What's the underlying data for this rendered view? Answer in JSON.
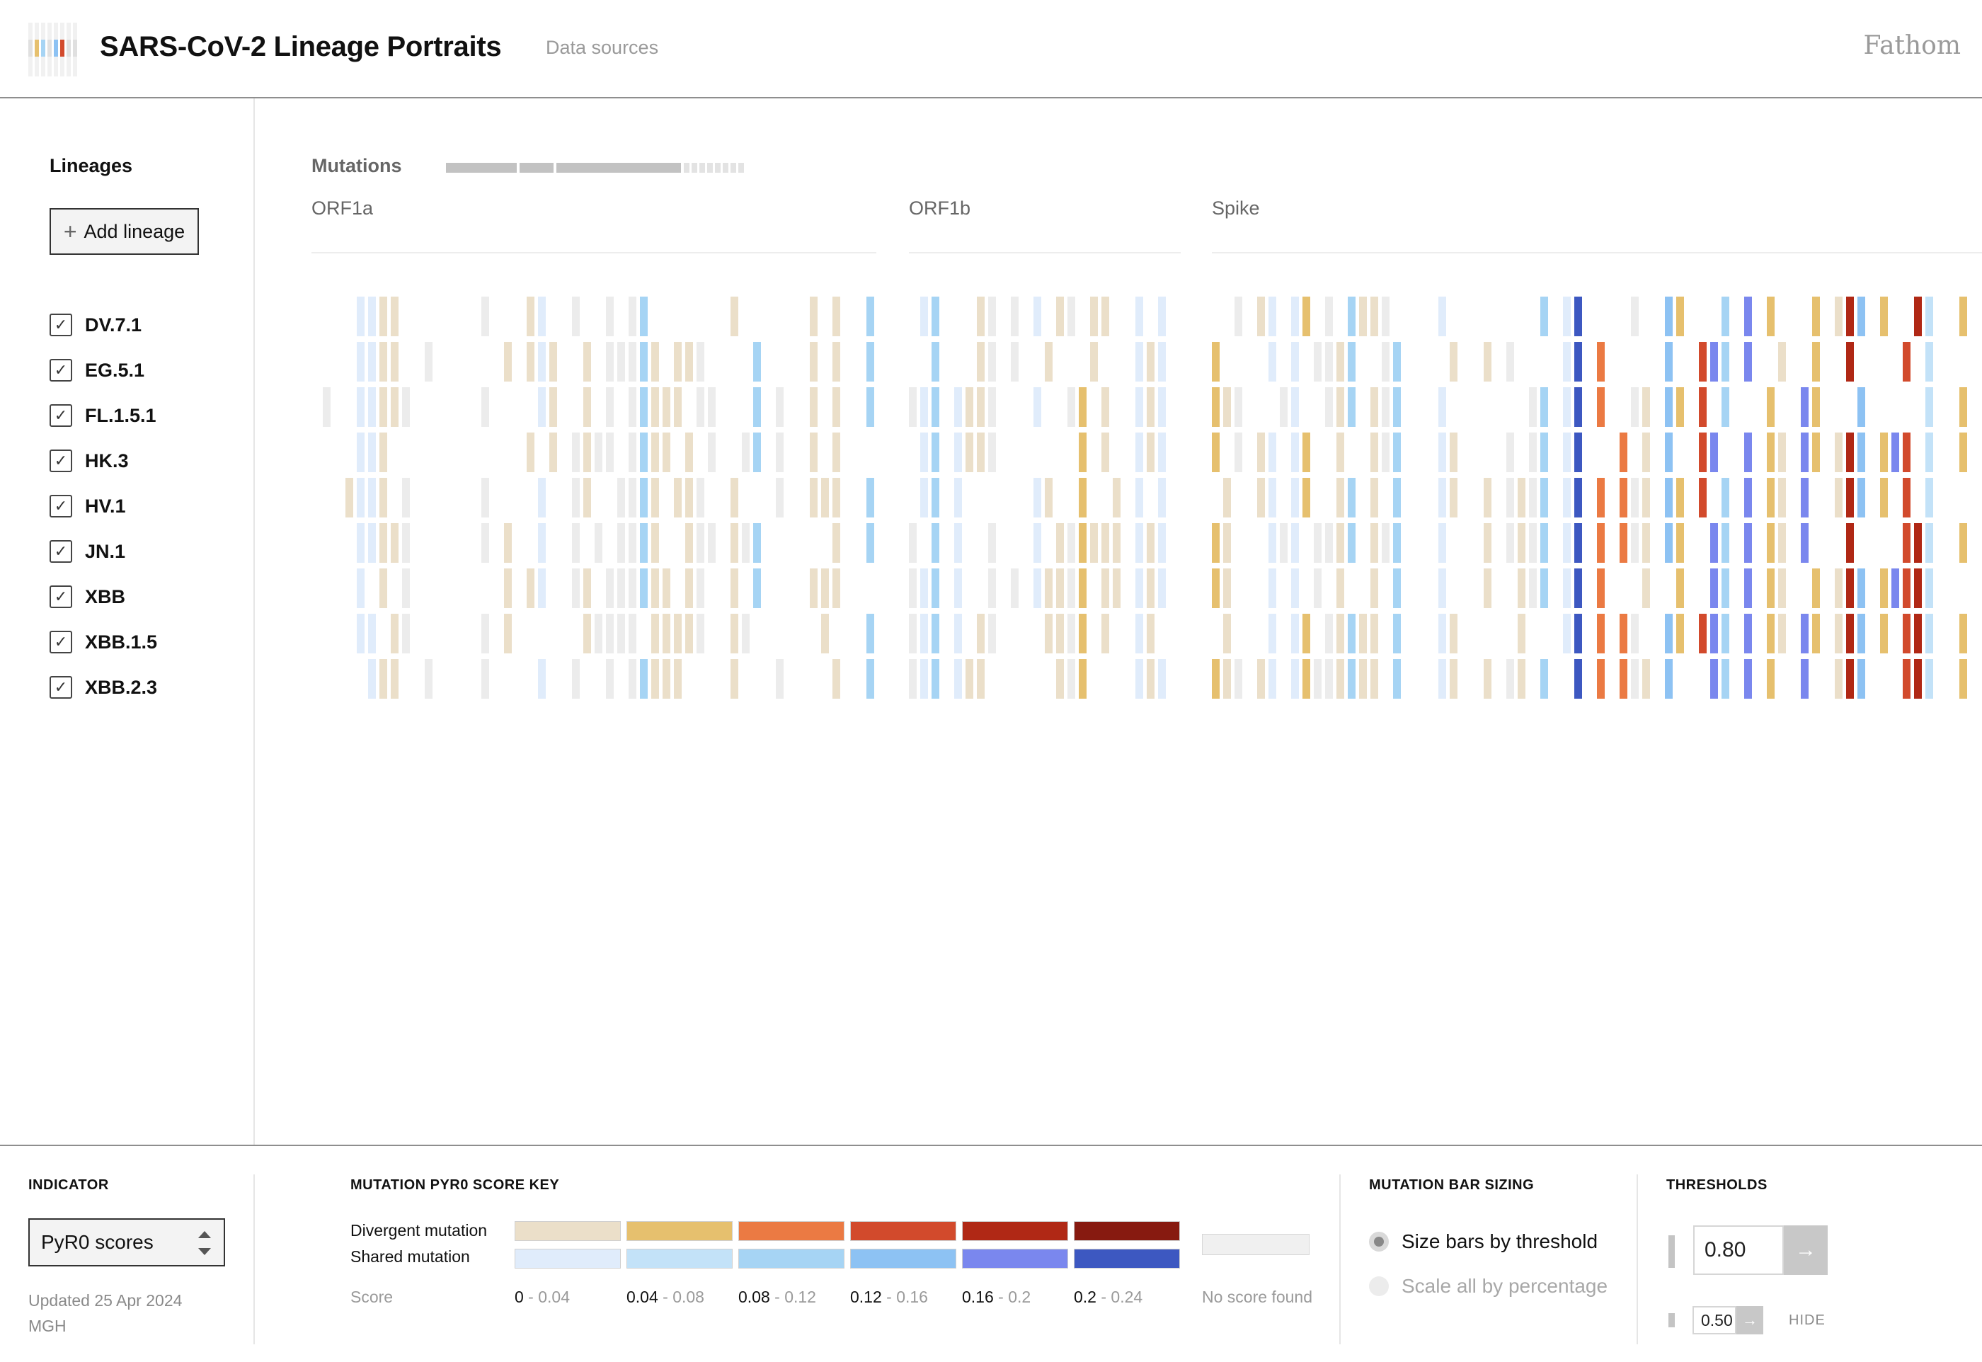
{
  "header": {
    "app_title": "SARS-CoV-2 Lineage Portraits",
    "data_sources_link": "Data sources",
    "brand": "Fathom"
  },
  "sidebar": {
    "title": "Lineages",
    "add_button_label": "Add lineage",
    "lineages": [
      {
        "label": "DV.7.1",
        "checked": true
      },
      {
        "label": "EG.5.1",
        "checked": true
      },
      {
        "label": "FL.1.5.1",
        "checked": true
      },
      {
        "label": "HK.3",
        "checked": true
      },
      {
        "label": "HV.1",
        "checked": true
      },
      {
        "label": "JN.1",
        "checked": true
      },
      {
        "label": "XBB",
        "checked": true
      },
      {
        "label": "XBB.1.5",
        "checked": true
      },
      {
        "label": "XBB.2.3",
        "checked": true
      }
    ]
  },
  "main": {
    "mutations_title": "Mutations",
    "genes": [
      {
        "label": "ORF1a"
      },
      {
        "label": "ORF1b"
      },
      {
        "label": "Spike"
      }
    ]
  },
  "footer": {
    "indicator": {
      "title": "INDICATOR",
      "selected": "PyR0 scores",
      "updated_line1": "Updated 25 Apr 2024",
      "updated_line2": "MGH"
    },
    "score_key": {
      "title": "MUTATION PYR0 SCORE KEY",
      "divergent_label": "Divergent mutation",
      "shared_label": "Shared mutation",
      "score_label": "Score",
      "divergent_colors": [
        "#ebdfc9",
        "#e6c06e",
        "#eb7a43",
        "#d24a2c",
        "#b02815",
        "#871a10"
      ],
      "shared_colors": [
        "#e0ecfb",
        "#c3e2f8",
        "#a6d4f4",
        "#8dc2f3",
        "#7a87ee",
        "#3d58c1"
      ],
      "ranges": [
        {
          "low": "0",
          "high": "0.04"
        },
        {
          "low": "0.04",
          "high": "0.08"
        },
        {
          "low": "0.08",
          "high": "0.12"
        },
        {
          "low": "0.12",
          "high": "0.16"
        },
        {
          "low": "0.16",
          "high": "0.2"
        },
        {
          "low": "0.2",
          "high": "0.24"
        }
      ],
      "no_score_label": "No score found",
      "no_score_color": "#f0f0f0"
    },
    "bar_sizing": {
      "title": "MUTATION BAR SIZING",
      "options": [
        {
          "label": "Size bars by threshold",
          "selected": true
        },
        {
          "label": "Scale all by percentage",
          "selected": false
        }
      ]
    },
    "thresholds": {
      "title": "THRESHOLDS",
      "primary_value": "0.80",
      "secondary_value": "0.50",
      "hide_label": "HIDE"
    }
  }
}
